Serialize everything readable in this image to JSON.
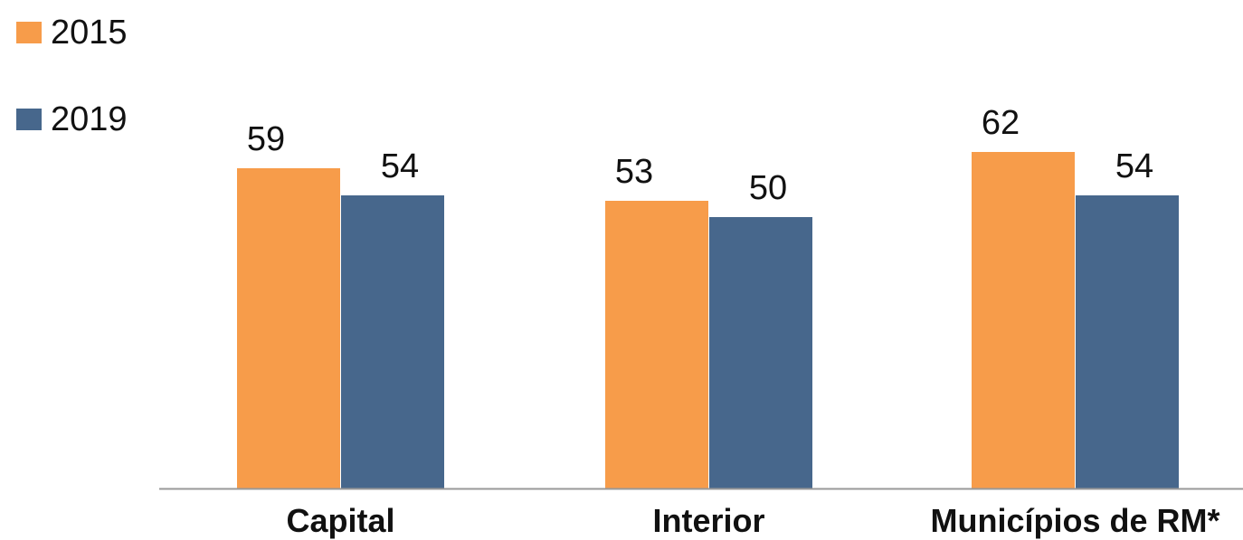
{
  "chart_data": {
    "type": "bar",
    "title": "",
    "xlabel": "",
    "ylabel": "",
    "categories": [
      "Capital",
      "Interior",
      "Municípios de RM*"
    ],
    "series": [
      {
        "name": "2015",
        "values": [
          59,
          53,
          62
        ],
        "color": "#F79C4A"
      },
      {
        "name": "2019",
        "values": [
          54,
          50,
          54
        ],
        "color": "#47678C"
      }
    ],
    "ylim": [
      0,
      80
    ],
    "grid": false,
    "data_labels": true,
    "legend_position": "top-left",
    "axis_color": "#999999"
  }
}
